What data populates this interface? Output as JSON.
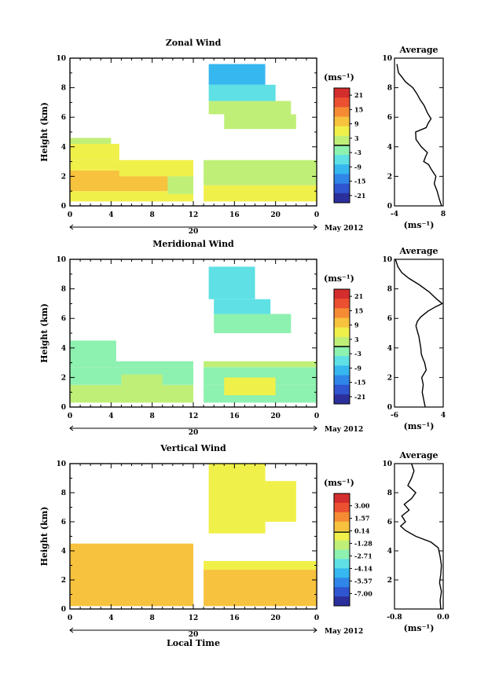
{
  "chart_data": [
    {
      "type": "heatmap",
      "title": "Zonal Wind",
      "ylabel": "Height (km)",
      "ylim": [
        0,
        10
      ],
      "yticks": [
        "0",
        "2",
        "4",
        "6",
        "8",
        "10"
      ],
      "xticks": [
        "0",
        "4",
        "8",
        "12",
        "16",
        "20",
        "0"
      ],
      "date_label": "20",
      "month_label": "May 2012",
      "colorbar": {
        "unit": "(ms⁻¹)",
        "ticks": [
          "21",
          "15",
          "9",
          "3",
          "-3",
          "-9",
          "-15",
          "-21"
        ],
        "range": [
          -24,
          24
        ]
      },
      "cells": [
        {
          "x": [
            0,
            4
          ],
          "y": [
            4.2,
            4.6
          ],
          "v": 2
        },
        {
          "x": [
            0,
            12
          ],
          "y": [
            0.3,
            1.0
          ],
          "v": 6
        },
        {
          "x": [
            0,
            10
          ],
          "y": [
            1.0,
            2.4
          ],
          "v": 11
        },
        {
          "x": [
            0,
            12
          ],
          "y": [
            2.4,
            3.1
          ],
          "v": 7
        },
        {
          "x": [
            0,
            4.8
          ],
          "y": [
            3.1,
            4.2
          ],
          "v": 4
        },
        {
          "x": [
            4.8,
            12
          ],
          "y": [
            2.0,
            2.9
          ],
          "v": 5
        },
        {
          "x": [
            9.5,
            12
          ],
          "y": [
            0.8,
            2.0
          ],
          "v": 1
        },
        {
          "x": [
            13,
            24
          ],
          "y": [
            0.3,
            1.4
          ],
          "v": 7
        },
        {
          "x": [
            13,
            24
          ],
          "y": [
            1.4,
            2.5
          ],
          "v": 3
        },
        {
          "x": [
            13,
            24
          ],
          "y": [
            2.5,
            3.1
          ],
          "v": 1
        },
        {
          "x": [
            15,
            22
          ],
          "y": [
            5.2,
            6.2
          ],
          "v": 3
        },
        {
          "x": [
            13.5,
            21.5
          ],
          "y": [
            6.2,
            7.1
          ],
          "v": 0
        },
        {
          "x": [
            13.5,
            20
          ],
          "y": [
            7.1,
            8.2
          ],
          "v": -6
        },
        {
          "x": [
            13.5,
            19
          ],
          "y": [
            8.2,
            9.6
          ],
          "v": -9
        }
      ],
      "profile": {
        "title": "Average",
        "xlabel": "(ms⁻¹)",
        "xlim": [
          -4,
          8
        ],
        "xticks": [
          "-4",
          "8"
        ],
        "yticks": [
          "0",
          "2",
          "4",
          "6",
          "8",
          "10"
        ],
        "x": [
          7.6,
          7.0,
          6.5,
          5.8,
          6.2,
          5.0,
          4.4,
          3.2,
          3.6,
          4.1,
          2.6,
          1.3,
          1.2,
          3.8,
          4.3,
          5.0,
          4.1,
          3.3,
          2.3,
          1.5,
          0.5,
          -1.3,
          -2.4,
          -3.0,
          -3.2,
          -3.4
        ],
        "y": [
          0.0,
          0.5,
          1.0,
          1.5,
          2.0,
          2.5,
          2.8,
          3.0,
          3.3,
          3.6,
          4.0,
          4.5,
          5.0,
          5.3,
          5.6,
          5.9,
          6.3,
          6.8,
          7.2,
          7.6,
          8.0,
          8.4,
          8.8,
          9.0,
          9.3,
          9.6
        ]
      }
    },
    {
      "type": "heatmap",
      "title": "Meridional Wind",
      "ylabel": "Height (km)",
      "ylim": [
        0,
        10
      ],
      "yticks": [
        "0",
        "2",
        "4",
        "6",
        "8",
        "10"
      ],
      "xticks": [
        "0",
        "4",
        "8",
        "12",
        "16",
        "20",
        "0"
      ],
      "date_label": "20",
      "month_label": "May 2012",
      "colorbar": {
        "unit": "(ms⁻¹)",
        "ticks": [
          "21",
          "15",
          "9",
          "3",
          "-3",
          "-9",
          "-15",
          "-21"
        ],
        "range": [
          -24,
          24
        ]
      },
      "cells": [
        {
          "x": [
            0,
            12
          ],
          "y": [
            0.3,
            1.5
          ],
          "v": 0
        },
        {
          "x": [
            0,
            12
          ],
          "y": [
            1.5,
            2.7
          ],
          "v": -2
        },
        {
          "x": [
            0,
            4.5
          ],
          "y": [
            2.7,
            4.5
          ],
          "v": -3
        },
        {
          "x": [
            4.5,
            12
          ],
          "y": [
            2.7,
            3.1
          ],
          "v": -1
        },
        {
          "x": [
            5,
            9
          ],
          "y": [
            1.0,
            2.2
          ],
          "v": 3
        },
        {
          "x": [
            13,
            24
          ],
          "y": [
            0.3,
            1.5
          ],
          "v": -3
        },
        {
          "x": [
            13,
            24
          ],
          "y": [
            1.5,
            2.7
          ],
          "v": -1
        },
        {
          "x": [
            13,
            24
          ],
          "y": [
            2.7,
            3.1
          ],
          "v": 1
        },
        {
          "x": [
            15,
            20
          ],
          "y": [
            0.8,
            2.0
          ],
          "v": 4
        },
        {
          "x": [
            14,
            21.5
          ],
          "y": [
            5.0,
            6.3
          ],
          "v": -2
        },
        {
          "x": [
            14,
            19.5
          ],
          "y": [
            6.3,
            7.3
          ],
          "v": -5
        },
        {
          "x": [
            13.5,
            18
          ],
          "y": [
            7.3,
            9.5
          ],
          "v": -7
        }
      ],
      "profile": {
        "title": "Average",
        "xlabel": "(ms⁻¹)",
        "xlim": [
          -6,
          4
        ],
        "xticks": [
          "-6",
          "4"
        ],
        "yticks": [
          "0",
          "2",
          "4",
          "6",
          "8",
          "10"
        ],
        "x": [
          0.3,
          0.0,
          -0.3,
          -0.1,
          -0.4,
          0.5,
          0.2,
          -0.2,
          -0.5,
          -0.6,
          -0.8,
          -1.0,
          -1.2,
          -1.6,
          -1.3,
          -0.6,
          0.9,
          2.5,
          3.8,
          2.7,
          1.1,
          -1.0,
          -3.0,
          -4.5,
          -5.3,
          -5.8
        ],
        "y": [
          0.0,
          0.5,
          1.0,
          1.5,
          2.0,
          2.5,
          3.0,
          3.3,
          3.6,
          4.0,
          4.4,
          4.8,
          5.0,
          5.5,
          5.8,
          6.1,
          6.5,
          6.8,
          7.0,
          7.3,
          7.8,
          8.3,
          8.7,
          9.1,
          9.5,
          10.0
        ]
      }
    },
    {
      "type": "heatmap",
      "title": "Vertical Wind",
      "ylabel": "Height (km)",
      "xlabel": "Local Time",
      "ylim": [
        0,
        10
      ],
      "yticks": [
        "0",
        "2",
        "4",
        "6",
        "8",
        "10"
      ],
      "xticks": [
        "0",
        "4",
        "8",
        "12",
        "16",
        "20",
        "0"
      ],
      "date_label": "20",
      "month_label": "May 2012",
      "colorbar": {
        "unit": "(ms⁻¹)",
        "ticks": [
          "3.00",
          "1.57",
          "0.14",
          "-1.28",
          "-2.71",
          "-4.14",
          "-5.57",
          "-7.00"
        ],
        "range": [
          -8.4,
          4.4
        ]
      },
      "cells": [
        {
          "x": [
            0,
            12
          ],
          "y": [
            0.2,
            4.5
          ],
          "v": 0.2
        },
        {
          "x": [
            13,
            24
          ],
          "y": [
            0.2,
            2.7
          ],
          "v": 0.2
        },
        {
          "x": [
            13,
            24
          ],
          "y": [
            2.7,
            3.3
          ],
          "v": 0.1
        },
        {
          "x": [
            13.5,
            19
          ],
          "y": [
            5.2,
            10.0
          ],
          "v": -0.3
        },
        {
          "x": [
            19,
            22
          ],
          "y": [
            6.0,
            8.8
          ],
          "v": -0.2
        }
      ],
      "profile": {
        "title": "Average",
        "xlabel": "(ms⁻¹)",
        "xlim": [
          -0.8,
          0.0
        ],
        "xticks": [
          "-0.8",
          "0.0"
        ],
        "yticks": [
          "2",
          "4",
          "6",
          "8",
          "10"
        ],
        "x": [
          -0.04,
          -0.05,
          -0.03,
          -0.06,
          -0.04,
          -0.03,
          -0.05,
          -0.08,
          -0.2,
          -0.45,
          -0.62,
          -0.7,
          -0.62,
          -0.68,
          -0.56,
          -0.64,
          -0.52,
          -0.45,
          -0.58,
          -0.52,
          -0.48,
          -0.52
        ],
        "y": [
          0.0,
          0.6,
          1.2,
          1.8,
          2.4,
          3.0,
          3.6,
          4.2,
          4.6,
          5.0,
          5.4,
          5.7,
          6.0,
          6.4,
          6.8,
          7.2,
          7.6,
          8.0,
          8.5,
          9.0,
          9.5,
          10.0
        ]
      }
    }
  ]
}
